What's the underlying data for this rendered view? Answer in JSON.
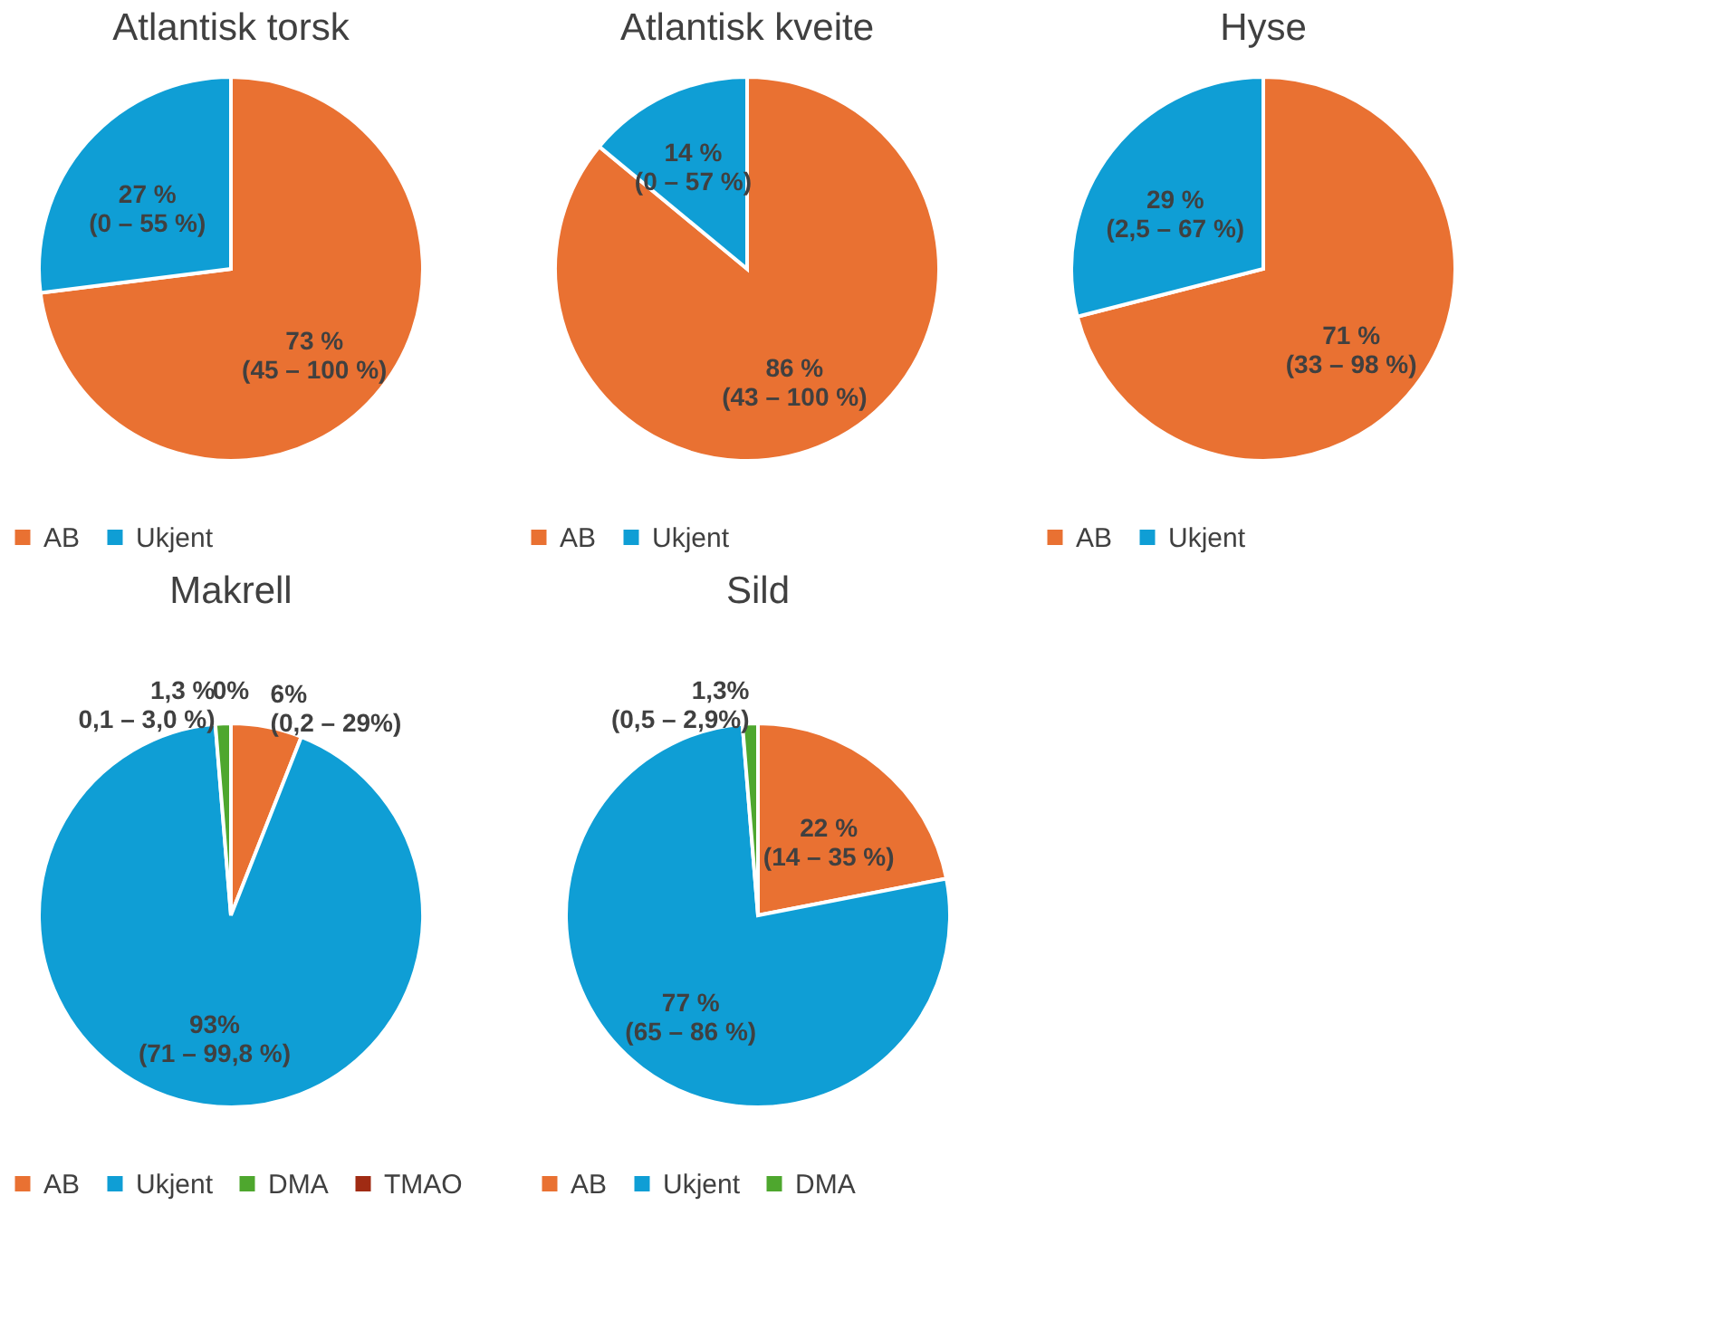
{
  "chart_data": [
    {
      "type": "pie",
      "title": "Atlantisk torsk",
      "categories": [
        "AB",
        "Ukjent"
      ],
      "values": [
        73,
        27
      ],
      "colors": [
        "#e97132",
        "#0f9ed5"
      ],
      "value_labels": [
        "73 %\n(45 – 100 %)",
        "27 %\n(0 – 55 %)"
      ],
      "legend": "bottom"
    },
    {
      "type": "pie",
      "title": "Atlantisk kveite",
      "categories": [
        "AB",
        "Ukjent"
      ],
      "values": [
        86,
        14
      ],
      "colors": [
        "#e97132",
        "#0f9ed5"
      ],
      "value_labels": [
        "86 %\n(43 – 100 %)",
        "14 %\n(0 – 57 %)"
      ],
      "legend": "bottom"
    },
    {
      "type": "pie",
      "title": "Hyse",
      "categories": [
        "AB",
        "Ukjent"
      ],
      "values": [
        71,
        29
      ],
      "colors": [
        "#e97132",
        "#0f9ed5"
      ],
      "value_labels": [
        "71 %\n(33 – 98 %)",
        "29 %\n(2,5 – 67 %)"
      ],
      "legend": "bottom"
    },
    {
      "type": "pie",
      "title": "Makrell",
      "categories": [
        "AB",
        "Ukjent",
        "DMA",
        "TMAO"
      ],
      "values": [
        6,
        93,
        1.3,
        0
      ],
      "colors": [
        "#e97132",
        "#0f9ed5",
        "#4ea72e",
        "#a02b13"
      ],
      "value_labels": [
        "6%\n(0,2 – 29%)",
        "93%\n(71 – 99,8 %)",
        "1,3 %\n0,1 – 3,0 %)",
        "0%"
      ],
      "legend": "bottom"
    },
    {
      "type": "pie",
      "title": "Sild",
      "categories": [
        "AB",
        "Ukjent",
        "DMA"
      ],
      "values": [
        22,
        77,
        1.3
      ],
      "colors": [
        "#e97132",
        "#0f9ed5",
        "#4ea72e"
      ],
      "value_labels": [
        "22 %\n(14 – 35 %)",
        "77 %\n(65 – 86 %)",
        "1,3%\n(0,5 – 2,9%)"
      ],
      "legend": "bottom"
    }
  ]
}
